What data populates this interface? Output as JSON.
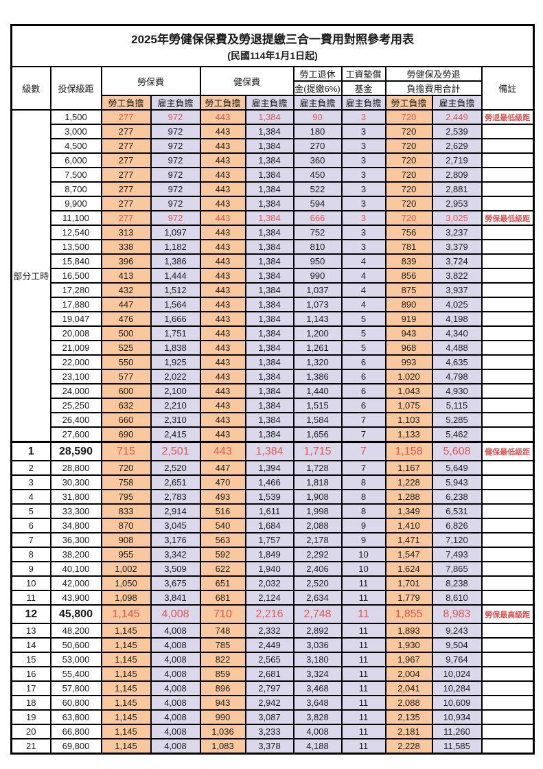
{
  "title": "2025年勞健保保費及勞退提繳三合一費用對照參考用表",
  "subtitle": "(民國114年1月1日起)",
  "header": {
    "level": "級數",
    "bracket": "投保級距",
    "labor": "勞保費",
    "health": "健保費",
    "pension_l1": "勞工退休",
    "pension_l2": "金(提繳6%)",
    "fund_l1": "工資墊償",
    "fund_l2": "基金",
    "total_l1": "勞健保及勞退",
    "total_l2": "負擔費用合計",
    "remark": "備註",
    "employee": "勞工負擔",
    "employer": "雇主負擔"
  },
  "part_time_label": "部分工時",
  "columns_legend_part_time": [
    "投保級距",
    "勞保費勞工負擔",
    "勞保費雇主負擔",
    "健保費勞工負擔",
    "健保費雇主負擔",
    "勞工退休金雇主負擔",
    "工資墊償基金雇主負擔",
    "合計勞工負擔",
    "合計雇主負擔",
    "備註",
    "flags"
  ],
  "part_time_rows": [
    [
      "1,500",
      "277",
      "972",
      "443",
      "1,384",
      "90",
      "3",
      "720",
      "2,449",
      "勞退最低級距",
      "red"
    ],
    [
      "3,000",
      "277",
      "972",
      "443",
      "1,384",
      "180",
      "3",
      "720",
      "2,539",
      "",
      ""
    ],
    [
      "4,500",
      "277",
      "972",
      "443",
      "1,384",
      "270",
      "3",
      "720",
      "2,629",
      "",
      ""
    ],
    [
      "6,000",
      "277",
      "972",
      "443",
      "1,384",
      "360",
      "3",
      "720",
      "2,719",
      "",
      ""
    ],
    [
      "7,500",
      "277",
      "972",
      "443",
      "1,384",
      "450",
      "3",
      "720",
      "2,809",
      "",
      ""
    ],
    [
      "8,700",
      "277",
      "972",
      "443",
      "1,384",
      "522",
      "3",
      "720",
      "2,881",
      "",
      ""
    ],
    [
      "9,900",
      "277",
      "972",
      "443",
      "1,384",
      "594",
      "3",
      "720",
      "2,953",
      "",
      ""
    ],
    [
      "11,100",
      "277",
      "972",
      "443",
      "1,384",
      "666",
      "3",
      "720",
      "3,025",
      "勞保最低級距",
      "red"
    ],
    [
      "12,540",
      "313",
      "1,097",
      "443",
      "1,384",
      "752",
      "3",
      "756",
      "3,237",
      "",
      ""
    ],
    [
      "13,500",
      "338",
      "1,182",
      "443",
      "1,384",
      "810",
      "3",
      "781",
      "3,379",
      "",
      ""
    ],
    [
      "15,840",
      "396",
      "1,386",
      "443",
      "1,384",
      "950",
      "4",
      "839",
      "3,724",
      "",
      ""
    ],
    [
      "16,500",
      "413",
      "1,444",
      "443",
      "1,384",
      "990",
      "4",
      "856",
      "3,822",
      "",
      ""
    ],
    [
      "17,280",
      "432",
      "1,512",
      "443",
      "1,384",
      "1,037",
      "4",
      "875",
      "3,937",
      "",
      ""
    ],
    [
      "17,880",
      "447",
      "1,564",
      "443",
      "1,384",
      "1,073",
      "4",
      "890",
      "4,025",
      "",
      ""
    ],
    [
      "19,047",
      "476",
      "1,666",
      "443",
      "1,384",
      "1,143",
      "5",
      "919",
      "4,198",
      "",
      ""
    ],
    [
      "20,008",
      "500",
      "1,751",
      "443",
      "1,384",
      "1,200",
      "5",
      "943",
      "4,340",
      "",
      ""
    ],
    [
      "21,009",
      "525",
      "1,838",
      "443",
      "1,384",
      "1,261",
      "5",
      "968",
      "4,488",
      "",
      ""
    ],
    [
      "22,000",
      "550",
      "1,925",
      "443",
      "1,384",
      "1,320",
      "6",
      "993",
      "4,635",
      "",
      ""
    ],
    [
      "23,100",
      "577",
      "2,022",
      "443",
      "1,384",
      "1,386",
      "6",
      "1,020",
      "4,798",
      "",
      ""
    ],
    [
      "24,000",
      "600",
      "2,100",
      "443",
      "1,384",
      "1,440",
      "6",
      "1,043",
      "4,930",
      "",
      ""
    ],
    [
      "25,250",
      "632",
      "2,210",
      "443",
      "1,384",
      "1,515",
      "6",
      "1,075",
      "5,115",
      "",
      ""
    ],
    [
      "26,400",
      "660",
      "2,310",
      "443",
      "1,384",
      "1,584",
      "7",
      "1,103",
      "5,285",
      "",
      ""
    ],
    [
      "27,600",
      "690",
      "2,415",
      "443",
      "1,384",
      "1,656",
      "7",
      "1,133",
      "5,462",
      "",
      ""
    ]
  ],
  "columns_legend_levels": [
    "級數",
    "投保級距",
    "勞保費勞工負擔",
    "勞保費雇主負擔",
    "健保費勞工負擔",
    "健保費雇主負擔",
    "勞工退休金雇主負擔",
    "工資墊償基金雇主負擔",
    "合計勞工負擔",
    "合計雇主負擔",
    "備註",
    "flags"
  ],
  "level_rows": [
    [
      "1",
      "28,590",
      "715",
      "2,501",
      "443",
      "1,384",
      "1,715",
      "7",
      "1,158",
      "5,608",
      "健保最低級距",
      "red big"
    ],
    [
      "2",
      "28,800",
      "720",
      "2,520",
      "447",
      "1,394",
      "1,728",
      "7",
      "1,167",
      "5,649",
      "",
      ""
    ],
    [
      "3",
      "30,300",
      "758",
      "2,651",
      "470",
      "1,466",
      "1,818",
      "8",
      "1,228",
      "5,943",
      "",
      ""
    ],
    [
      "4",
      "31,800",
      "795",
      "2,783",
      "493",
      "1,539",
      "1,908",
      "8",
      "1,288",
      "6,238",
      "",
      ""
    ],
    [
      "5",
      "33,300",
      "833",
      "2,914",
      "516",
      "1,611",
      "1,998",
      "8",
      "1,349",
      "6,531",
      "",
      ""
    ],
    [
      "6",
      "34,800",
      "870",
      "3,045",
      "540",
      "1,684",
      "2,088",
      "9",
      "1,410",
      "6,826",
      "",
      ""
    ],
    [
      "7",
      "36,300",
      "908",
      "3,176",
      "563",
      "1,757",
      "2,178",
      "9",
      "1,471",
      "7,120",
      "",
      ""
    ],
    [
      "8",
      "38,200",
      "955",
      "3,342",
      "592",
      "1,849",
      "2,292",
      "10",
      "1,547",
      "7,493",
      "",
      ""
    ],
    [
      "9",
      "40,100",
      "1,002",
      "3,509",
      "622",
      "1,940",
      "2,406",
      "10",
      "1,624",
      "7,865",
      "",
      ""
    ],
    [
      "10",
      "42,000",
      "1,050",
      "3,675",
      "651",
      "2,032",
      "2,520",
      "11",
      "1,701",
      "8,238",
      "",
      ""
    ],
    [
      "11",
      "43,900",
      "1,098",
      "3,841",
      "681",
      "2,124",
      "2,634",
      "11",
      "1,779",
      "8,610",
      "",
      ""
    ],
    [
      "12",
      "45,800",
      "1,145",
      "4,008",
      "710",
      "2,216",
      "2,748",
      "11",
      "1,855",
      "8,983",
      "勞保最高級距",
      "red big"
    ],
    [
      "13",
      "48,200",
      "1,145",
      "4,008",
      "748",
      "2,332",
      "2,892",
      "11",
      "1,893",
      "9,243",
      "",
      ""
    ],
    [
      "14",
      "50,600",
      "1,145",
      "4,008",
      "785",
      "2,449",
      "3,036",
      "11",
      "1,930",
      "9,504",
      "",
      ""
    ],
    [
      "15",
      "53,000",
      "1,145",
      "4,008",
      "822",
      "2,565",
      "3,180",
      "11",
      "1,967",
      "9,764",
      "",
      ""
    ],
    [
      "16",
      "55,400",
      "1,145",
      "4,008",
      "859",
      "2,681",
      "3,324",
      "11",
      "2,004",
      "10,024",
      "",
      ""
    ],
    [
      "17",
      "57,800",
      "1,145",
      "4,008",
      "896",
      "2,797",
      "3,468",
      "11",
      "2,041",
      "10,284",
      "",
      ""
    ],
    [
      "18",
      "60,800",
      "1,145",
      "4,008",
      "943",
      "2,942",
      "3,648",
      "11",
      "2,088",
      "10,609",
      "",
      ""
    ],
    [
      "19",
      "63,800",
      "1,145",
      "4,008",
      "990",
      "3,087",
      "3,828",
      "11",
      "2,135",
      "10,934",
      "",
      ""
    ],
    [
      "20",
      "66,800",
      "1,145",
      "4,008",
      "1,036",
      "3,233",
      "4,008",
      "11",
      "2,181",
      "11,260",
      "",
      ""
    ],
    [
      "21",
      "69,800",
      "1,145",
      "4,008",
      "1,083",
      "3,378",
      "4,188",
      "11",
      "2,228",
      "11,585",
      "",
      ""
    ]
  ],
  "colors": {
    "employee_bg": "#F9C99D",
    "employer_bg": "#DBD8EC",
    "red_text": "#E05555",
    "border": "#000000"
  }
}
